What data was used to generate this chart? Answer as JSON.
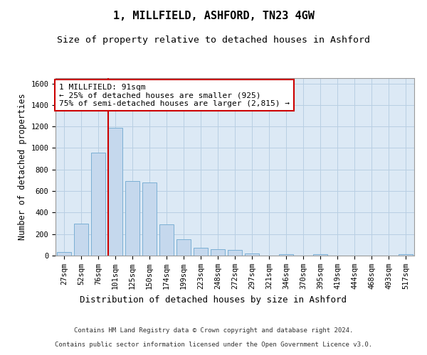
{
  "title_line1": "1, MILLFIELD, ASHFORD, TN23 4GW",
  "title_line2": "Size of property relative to detached houses in Ashford",
  "xlabel": "Distribution of detached houses by size in Ashford",
  "ylabel": "Number of detached properties",
  "categories": [
    "27sqm",
    "52sqm",
    "76sqm",
    "101sqm",
    "125sqm",
    "150sqm",
    "174sqm",
    "199sqm",
    "223sqm",
    "248sqm",
    "272sqm",
    "297sqm",
    "321sqm",
    "346sqm",
    "370sqm",
    "395sqm",
    "419sqm",
    "444sqm",
    "468sqm",
    "493sqm",
    "517sqm"
  ],
  "values": [
    30,
    300,
    960,
    1190,
    690,
    680,
    290,
    155,
    75,
    60,
    50,
    20,
    0,
    15,
    0,
    10,
    0,
    0,
    0,
    0,
    10
  ],
  "bar_color": "#c5d8ed",
  "bar_edge_color": "#7bafd4",
  "vline_color": "#cc0000",
  "vline_position": 2.6,
  "annotation_text": "1 MILLFIELD: 91sqm\n← 25% of detached houses are smaller (925)\n75% of semi-detached houses are larger (2,815) →",
  "annotation_box_facecolor": "#ffffff",
  "annotation_box_edgecolor": "#cc0000",
  "ylim": [
    0,
    1650
  ],
  "yticks": [
    0,
    200,
    400,
    600,
    800,
    1000,
    1200,
    1400,
    1600
  ],
  "background_color": "#dce9f5",
  "grid_color": "#b8cfe3",
  "footer_line1": "Contains HM Land Registry data © Crown copyright and database right 2024.",
  "footer_line2": "Contains public sector information licensed under the Open Government Licence v3.0.",
  "title_fontsize": 11,
  "subtitle_fontsize": 9.5,
  "tick_fontsize": 7.5,
  "ylabel_fontsize": 8.5,
  "xlabel_fontsize": 9,
  "footer_fontsize": 6.5,
  "annotation_fontsize": 8
}
